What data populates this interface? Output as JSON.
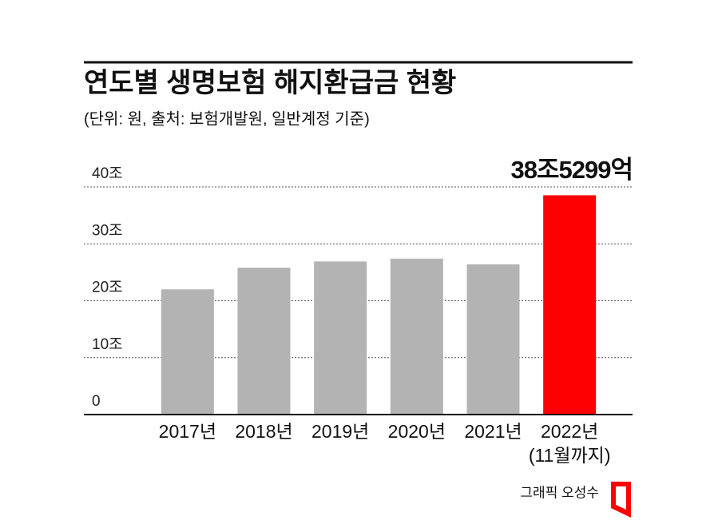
{
  "chart_data": {
    "type": "bar",
    "title": "연도별 생명보험 해지환급금 현황",
    "subtitle": "(단위: 원, 출처: 보험개발원, 일반계정 기준)",
    "categories": [
      "2017년",
      "2018년",
      "2019년",
      "2020년",
      "2021년",
      "2022년"
    ],
    "category_note": "(11월까지)",
    "values": [
      22.0,
      25.8,
      26.9,
      27.4,
      26.4,
      38.5299
    ],
    "value_labels": [
      null,
      null,
      null,
      null,
      null,
      "38조5299억"
    ],
    "colors": [
      "#b3b3b3",
      "#b3b3b3",
      "#b3b3b3",
      "#b3b3b3",
      "#b3b3b3",
      "#ff0000"
    ],
    "ylim": [
      0,
      40
    ],
    "yticks": [
      0,
      {
        "value": 10,
        "label": "10조"
      },
      {
        "value": 20,
        "label": "20조"
      },
      {
        "value": 30,
        "label": "30조"
      },
      {
        "value": 40,
        "label": "40조"
      }
    ],
    "grid": true,
    "credit": "그래픽 오성수"
  }
}
